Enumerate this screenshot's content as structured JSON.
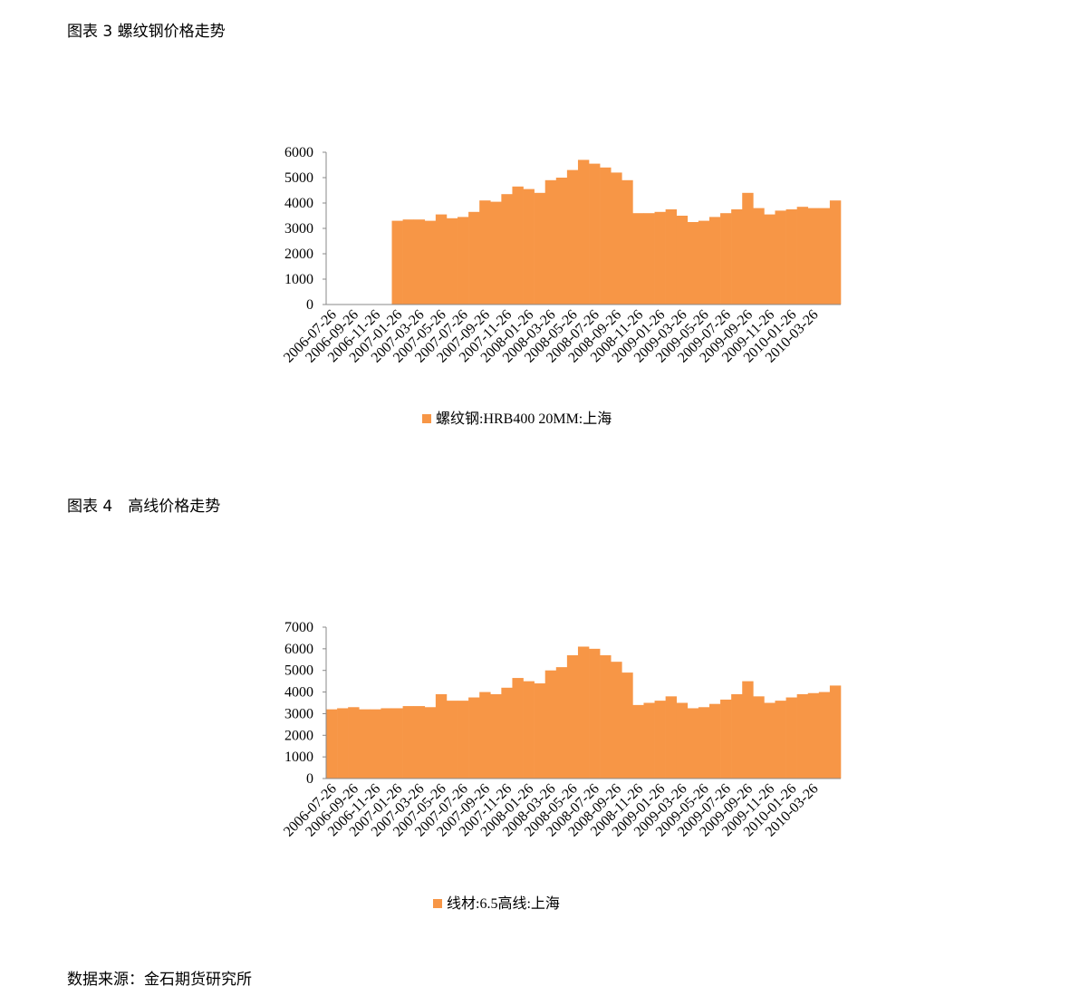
{
  "chart_data": [
    {
      "type": "bar",
      "title": "图表 3 螺纹钢价格走势",
      "categories": [
        "2006-07-26",
        null,
        "2006-09-26",
        null,
        "2006-11-26",
        null,
        "2007-01-26",
        null,
        "2007-03-26",
        null,
        "2007-05-26",
        null,
        "2007-07-26",
        null,
        "2007-09-26",
        null,
        "2007-11-26",
        null,
        "2008-01-26",
        null,
        "2008-03-26",
        null,
        "2008-05-26",
        null,
        "2008-07-26",
        null,
        "2008-09-26",
        null,
        "2008-11-26",
        null,
        "2009-01-26",
        null,
        "2009-03-26",
        null,
        "2009-05-26",
        null,
        "2009-07-26",
        null,
        "2009-09-26",
        null,
        "2009-11-26",
        null,
        "2010-01-26",
        null,
        "2010-03-26",
        null,
        null
      ],
      "series": [
        {
          "name": "螺纹钢:HRB400 20MM:上海",
          "color": "#f79646",
          "values": [
            0,
            0,
            0,
            0,
            0,
            0,
            3300,
            3350,
            3350,
            3300,
            3550,
            3400,
            3450,
            3650,
            4100,
            4050,
            4350,
            4650,
            4550,
            4400,
            4900,
            5000,
            5300,
            5700,
            5550,
            5400,
            5200,
            4900,
            3600,
            3600,
            3650,
            3750,
            3500,
            3250,
            3300,
            3450,
            3600,
            3750,
            4400,
            3800,
            3550,
            3700,
            3750,
            3850,
            3800,
            3800,
            4100
          ]
        }
      ],
      "ylim": [
        0,
        6000
      ],
      "yticks": [
        0,
        1000,
        2000,
        3000,
        4000,
        5000,
        6000
      ]
    },
    {
      "type": "bar",
      "title": "图表 4　高线价格走势",
      "categories": [
        "2006-07-26",
        null,
        "2006-09-26",
        null,
        "2006-11-26",
        null,
        "2007-01-26",
        null,
        "2007-03-26",
        null,
        "2007-05-26",
        null,
        "2007-07-26",
        null,
        "2007-09-26",
        null,
        "2007-11-26",
        null,
        "2008-01-26",
        null,
        "2008-03-26",
        null,
        "2008-05-26",
        null,
        "2008-07-26",
        null,
        "2008-09-26",
        null,
        "2008-11-26",
        null,
        "2009-01-26",
        null,
        "2009-03-26",
        null,
        "2009-05-26",
        null,
        "2009-07-26",
        null,
        "2009-09-26",
        null,
        "2009-11-26",
        null,
        "2010-01-26",
        null,
        "2010-03-26",
        null,
        null
      ],
      "series": [
        {
          "name": "线材:6.5高线:上海",
          "color": "#f79646",
          "values": [
            3200,
            3250,
            3300,
            3200,
            3200,
            3250,
            3250,
            3350,
            3350,
            3300,
            3900,
            3600,
            3600,
            3750,
            4000,
            3900,
            4200,
            4650,
            4500,
            4400,
            5000,
            5150,
            5700,
            6100,
            6000,
            5700,
            5400,
            4900,
            3400,
            3500,
            3600,
            3800,
            3500,
            3250,
            3300,
            3450,
            3650,
            3900,
            4500,
            3800,
            3500,
            3600,
            3750,
            3900,
            3950,
            4000,
            4300
          ]
        }
      ],
      "ylim": [
        0,
        7000
      ],
      "yticks": [
        0,
        1000,
        2000,
        3000,
        4000,
        5000,
        6000,
        7000
      ]
    }
  ],
  "source": "数据来源：金石期货研究所"
}
